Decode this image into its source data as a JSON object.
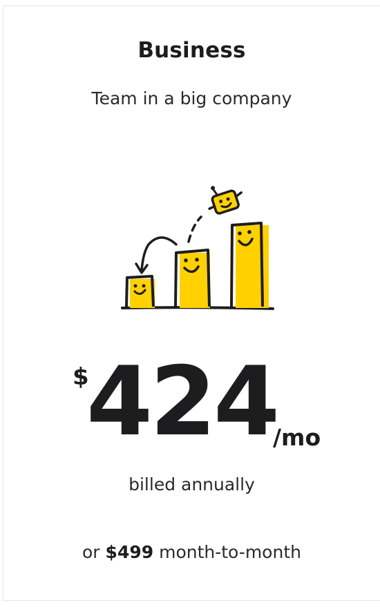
{
  "plan": {
    "title": "Business",
    "subtitle": "Team in a big company"
  },
  "price": {
    "currency": "$",
    "amount": "424",
    "period": "/mo",
    "billing_note": "billed annually",
    "alt_prefix": "or ",
    "alt_amount": "$499",
    "alt_suffix": " month-to-month"
  },
  "illustration": {
    "icon": "growing-bars-mascot-icon"
  },
  "colors": {
    "accent": "#FFD100",
    "ink": "#1d1d1f"
  }
}
